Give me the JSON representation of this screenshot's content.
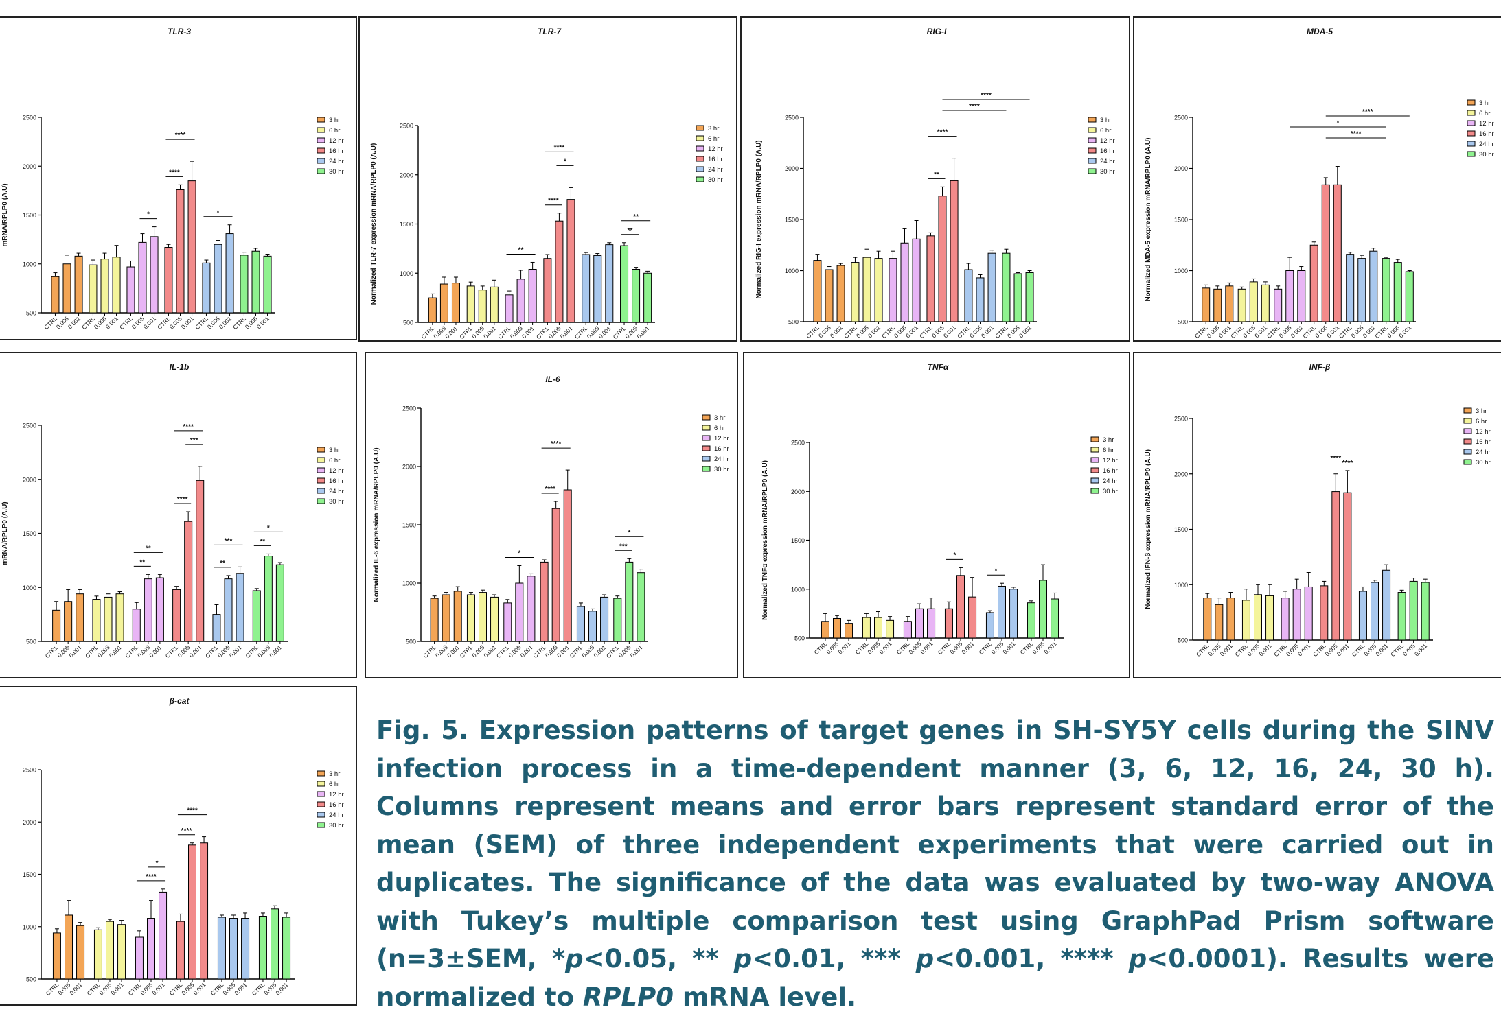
{
  "x_tick_labels": [
    "CTRL",
    "0.005",
    "0.001"
  ],
  "legend_labels": [
    "3 hr",
    "6 hr",
    "12 hr",
    "16 hr",
    "24 hr",
    "30 hr"
  ],
  "group_colors": [
    "#f3a556",
    "#f4f49b",
    "#e8b5f5",
    "#f28a8a",
    "#a9c8ee",
    "#8ff28f"
  ],
  "chart_data": [
    {
      "type": "bar",
      "title": "TLR-3",
      "ylabel": "mRNA/RPLP0 (A.U)",
      "ylim": [
        500,
        2500
      ],
      "yticks": [
        500,
        1000,
        1500,
        2000,
        2500
      ],
      "groups": [
        "3 hr",
        "6 hr",
        "12 hr",
        "16 hr",
        "24 hr",
        "30 hr"
      ],
      "categories": [
        "CTRL",
        "0.005",
        "0.001"
      ],
      "values": [
        [
          870,
          1000,
          1080
        ],
        [
          990,
          1050,
          1070
        ],
        [
          970,
          1220,
          1280
        ],
        [
          1170,
          1760,
          1850
        ],
        [
          1010,
          1200,
          1310
        ],
        [
          1090,
          1130,
          1080
        ]
      ],
      "errors": [
        [
          40,
          90,
          30
        ],
        [
          50,
          60,
          120
        ],
        [
          60,
          90,
          100
        ],
        [
          30,
          50,
          200
        ],
        [
          30,
          40,
          90
        ],
        [
          30,
          30,
          20
        ]
      ],
      "annotations": [
        {
          "group": 2,
          "from": 1,
          "to": 2,
          "text": "*"
        },
        {
          "group": 3,
          "from": 0,
          "to": 1,
          "text": "****"
        },
        {
          "group": 3,
          "from": 0,
          "to": 2,
          "text": "****"
        },
        {
          "group": 4,
          "from": 0,
          "to": 2,
          "text": "*"
        }
      ]
    },
    {
      "type": "bar",
      "title": "TLR-7",
      "ylabel": "Normalized TLR-7 expression mRNA/RPLP0 (A.U)",
      "ylim": [
        500,
        2500
      ],
      "yticks": [
        500,
        1000,
        1500,
        2000,
        2500
      ],
      "groups": [
        "3 hr",
        "6 hr",
        "12 hr",
        "16 hr",
        "24 hr",
        "30 hr"
      ],
      "categories": [
        "CTRL",
        "0.005",
        "0.001"
      ],
      "values": [
        [
          750,
          890,
          900
        ],
        [
          870,
          830,
          860
        ],
        [
          780,
          940,
          1040
        ],
        [
          1150,
          1530,
          1750
        ],
        [
          1190,
          1180,
          1290
        ],
        [
          1280,
          1040,
          1000
        ]
      ],
      "errors": [
        [
          40,
          70,
          60
        ],
        [
          40,
          40,
          70
        ],
        [
          40,
          90,
          70
        ],
        [
          40,
          80,
          120
        ],
        [
          20,
          20,
          20
        ],
        [
          30,
          20,
          20
        ]
      ],
      "annotations": [
        {
          "group": 2,
          "from": 0,
          "to": 2,
          "text": "**"
        },
        {
          "group": 3,
          "from": 0,
          "to": 1,
          "text": "****"
        },
        {
          "group": 3,
          "from": 1,
          "to": 2,
          "text": "*"
        },
        {
          "group": 3,
          "from": 0,
          "to": 2,
          "text": "****"
        },
        {
          "group": 5,
          "from": 0,
          "to": 1,
          "text": "**"
        },
        {
          "group": 5,
          "from": 0,
          "to": 2,
          "text": "**"
        }
      ]
    },
    {
      "type": "bar",
      "title": "RIG-I",
      "ylabel": "Normalized RIG-I expression mRNA/RPLP0 (A.U)",
      "ylim": [
        500,
        2500
      ],
      "yticks": [
        500,
        1000,
        1500,
        2000,
        2500
      ],
      "groups": [
        "3 hr",
        "6 hr",
        "12 hr",
        "16 hr",
        "24 hr",
        "30 hr"
      ],
      "categories": [
        "CTRL",
        "0.005",
        "0.001"
      ],
      "values": [
        [
          1100,
          1010,
          1050
        ],
        [
          1080,
          1130,
          1120
        ],
        [
          1120,
          1270,
          1310
        ],
        [
          1340,
          1730,
          1880
        ],
        [
          1010,
          930,
          1170
        ],
        [
          1170,
          970,
          980
        ]
      ],
      "errors": [
        [
          60,
          30,
          20
        ],
        [
          50,
          80,
          70
        ],
        [
          70,
          140,
          180
        ],
        [
          30,
          90,
          220
        ],
        [
          60,
          30,
          30
        ],
        [
          40,
          10,
          20
        ]
      ],
      "annotations": [
        {
          "group": 3,
          "from": 0,
          "to": 1,
          "text": "**"
        },
        {
          "group": 3,
          "from": 0,
          "to": 2,
          "text": "****"
        }
      ],
      "spans": [
        {
          "fromGroup": 3,
          "toGroup": 5,
          "text": "****",
          "level": 1
        },
        {
          "fromGroup": 3,
          "toGroup": 6,
          "text": "****",
          "level": 2
        }
      ]
    },
    {
      "type": "bar",
      "title": "MDA-5",
      "ylabel": "Normalized MDA-5 expression mRNA/RPLP0 (A.U)",
      "ylim": [
        500,
        2500
      ],
      "yticks": [
        500,
        1000,
        1500,
        2000,
        2500
      ],
      "groups": [
        "3 hr",
        "6 hr",
        "12 hr",
        "16 hr",
        "24 hr",
        "30 hr"
      ],
      "categories": [
        "CTRL",
        "0.005",
        "0.001"
      ],
      "values": [
        [
          830,
          820,
          850
        ],
        [
          820,
          890,
          860
        ],
        [
          820,
          1000,
          1000
        ],
        [
          1250,
          1840,
          1840
        ],
        [
          1160,
          1120,
          1190
        ],
        [
          1120,
          1080,
          990
        ]
      ],
      "errors": [
        [
          30,
          30,
          30
        ],
        [
          20,
          30,
          30
        ],
        [
          30,
          130,
          40
        ],
        [
          30,
          70,
          180
        ],
        [
          20,
          30,
          30
        ],
        [
          10,
          30,
          10
        ]
      ],
      "annotations": [],
      "spans": [
        {
          "fromGroup": 3,
          "toGroup": 5,
          "text": "****",
          "level": 1
        },
        {
          "fromGroup": 2,
          "toGroup": 5,
          "text": "*",
          "level": 2
        },
        {
          "fromGroup": 3,
          "toGroup": 6,
          "text": "****",
          "level": 3
        }
      ]
    },
    {
      "type": "bar",
      "title": "IL-1b",
      "ylabel": "mRNA/RPLP0 (A.U)",
      "ylim": [
        500,
        2500
      ],
      "yticks": [
        500,
        1000,
        1500,
        2000,
        2500
      ],
      "groups": [
        "3 hr",
        "6 hr",
        "12 hr",
        "16 hr",
        "24 hr",
        "30 hr"
      ],
      "categories": [
        "CTRL",
        "0.005",
        "0.001"
      ],
      "values": [
        [
          790,
          870,
          940
        ],
        [
          890,
          910,
          940
        ],
        [
          800,
          1080,
          1090
        ],
        [
          980,
          1610,
          1990
        ],
        [
          750,
          1080,
          1130
        ],
        [
          970,
          1290,
          1210
        ]
      ],
      "errors": [
        [
          80,
          110,
          40
        ],
        [
          30,
          30,
          20
        ],
        [
          60,
          40,
          30
        ],
        [
          30,
          90,
          130
        ],
        [
          90,
          30,
          60
        ],
        [
          20,
          20,
          20
        ]
      ],
      "annotations": [
        {
          "group": 2,
          "from": 0,
          "to": 1,
          "text": "**"
        },
        {
          "group": 2,
          "from": 0,
          "to": 2,
          "text": "**"
        },
        {
          "group": 3,
          "from": 0,
          "to": 1,
          "text": "****"
        },
        {
          "group": 3,
          "from": 1,
          "to": 2,
          "text": "***"
        },
        {
          "group": 3,
          "from": 0,
          "to": 2,
          "text": "****"
        },
        {
          "group": 4,
          "from": 0,
          "to": 1,
          "text": "**"
        },
        {
          "group": 4,
          "from": 0,
          "to": 2,
          "text": "***"
        },
        {
          "group": 5,
          "from": 0,
          "to": 1,
          "text": "**"
        },
        {
          "group": 5,
          "from": 0,
          "to": 2,
          "text": "*"
        }
      ]
    },
    {
      "type": "bar",
      "title": "IL-6",
      "ylabel": "Normalized IL-6 expression mRNA/RPLP0 (A.U)",
      "ylim": [
        500,
        2500
      ],
      "yticks": [
        500,
        1000,
        1500,
        2000,
        2500
      ],
      "groups": [
        "3 hr",
        "6 hr",
        "12 hr",
        "16 hr",
        "24 hr",
        "30 hr"
      ],
      "categories": [
        "CTRL",
        "0.005",
        "0.001"
      ],
      "values": [
        [
          870,
          900,
          930
        ],
        [
          900,
          920,
          880
        ],
        [
          830,
          1000,
          1060
        ],
        [
          1180,
          1640,
          1800
        ],
        [
          800,
          760,
          880
        ],
        [
          870,
          1180,
          1090
        ]
      ],
      "errors": [
        [
          20,
          20,
          40
        ],
        [
          20,
          20,
          20
        ],
        [
          30,
          150,
          20
        ],
        [
          20,
          60,
          170
        ],
        [
          30,
          20,
          20
        ],
        [
          20,
          30,
          30
        ]
      ],
      "annotations": [
        {
          "group": 2,
          "from": 0,
          "to": 2,
          "text": "*"
        },
        {
          "group": 3,
          "from": 0,
          "to": 1,
          "text": "****"
        },
        {
          "group": 3,
          "from": 0,
          "to": 2,
          "text": "****"
        },
        {
          "group": 5,
          "from": 0,
          "to": 1,
          "text": "***"
        },
        {
          "group": 5,
          "from": 0,
          "to": 2,
          "text": "*"
        }
      ]
    },
    {
      "type": "bar",
      "title": "TNFα",
      "ylabel": "Normalized TNFα expression mRNA/RPLP0 (A.U)",
      "ylim": [
        500,
        2500
      ],
      "yticks": [
        500,
        1000,
        1500,
        2000,
        2500
      ],
      "groups": [
        "3 hr",
        "6 hr",
        "12 hr",
        "16 hr",
        "24 hr",
        "30 hr"
      ],
      "categories": [
        "CTRL",
        "0.005",
        "0.001"
      ],
      "values": [
        [
          670,
          700,
          650
        ],
        [
          710,
          710,
          680
        ],
        [
          670,
          800,
          800
        ],
        [
          800,
          1140,
          920
        ],
        [
          760,
          1030,
          1000
        ],
        [
          860,
          1090,
          900
        ]
      ],
      "errors": [
        [
          80,
          30,
          30
        ],
        [
          40,
          60,
          40
        ],
        [
          50,
          50,
          110
        ],
        [
          70,
          80,
          200
        ],
        [
          20,
          30,
          20
        ],
        [
          20,
          160,
          60
        ]
      ],
      "annotations": [
        {
          "group": 3,
          "from": 0,
          "to": 1,
          "text": "*"
        },
        {
          "group": 4,
          "from": 0,
          "to": 1,
          "text": "*"
        }
      ]
    },
    {
      "type": "bar",
      "title": "INF-β",
      "ylabel": "Normalized IFN-β expression mRNA/RPLP0 (A.U)",
      "ylim": [
        500,
        2500
      ],
      "yticks": [
        500,
        1000,
        1500,
        2000,
        2500
      ],
      "groups": [
        "3 hr",
        "6 hr",
        "12 hr",
        "16 hr",
        "24 hr",
        "30 hr"
      ],
      "categories": [
        "CTRL",
        "0.005",
        "0.001"
      ],
      "values": [
        [
          880,
          820,
          880
        ],
        [
          860,
          910,
          900
        ],
        [
          880,
          960,
          980
        ],
        [
          990,
          1840,
          1830
        ],
        [
          940,
          1020,
          1130
        ],
        [
          930,
          1030,
          1020
        ]
      ],
      "errors": [
        [
          40,
          60,
          50
        ],
        [
          100,
          90,
          100
        ],
        [
          60,
          90,
          130
        ],
        [
          40,
          160,
          200
        ],
        [
          40,
          20,
          50
        ],
        [
          20,
          30,
          30
        ]
      ],
      "annotations": [],
      "labels": [
        {
          "group": 3,
          "bar": 1,
          "text": "****"
        },
        {
          "group": 3,
          "bar": 2,
          "text": "****"
        }
      ]
    },
    {
      "type": "bar",
      "title": "β-cat",
      "ylabel": "",
      "ylim": [
        500,
        2500
      ],
      "yticks": [
        500,
        1000,
        1500,
        2000,
        2500
      ],
      "groups": [
        "3 hr",
        "6 hr",
        "12 hr",
        "16 hr",
        "24 hr",
        "30 hr"
      ],
      "categories": [
        "CTRL",
        "0.005",
        "0.001"
      ],
      "values": [
        [
          940,
          1110,
          1010
        ],
        [
          970,
          1050,
          1020
        ],
        [
          900,
          1080,
          1330
        ],
        [
          1050,
          1780,
          1800
        ],
        [
          1090,
          1080,
          1080
        ],
        [
          1100,
          1170,
          1090
        ]
      ],
      "errors": [
        [
          40,
          140,
          30
        ],
        [
          20,
          20,
          40
        ],
        [
          60,
          170,
          30
        ],
        [
          70,
          20,
          60
        ],
        [
          20,
          30,
          50
        ],
        [
          30,
          30,
          40
        ]
      ],
      "annotations": [
        {
          "group": 2,
          "from": 0,
          "to": 2,
          "text": "****"
        },
        {
          "group": 2,
          "from": 1,
          "to": 2,
          "text": "*"
        },
        {
          "group": 3,
          "from": 0,
          "to": 1,
          "text": "****"
        },
        {
          "group": 3,
          "from": 0,
          "to": 2,
          "text": "****"
        }
      ]
    }
  ],
  "caption": {
    "part1": "Fig. 5. Expression patterns of target genes in SH-SY5Y cells during the SINV infection process in a time-dependent manner (3, 6, 12, 16, 24, 30 h). Columns represent means and error bars represent standard error of the mean (SEM) of three independent experiments that were carried out in duplicates. The significance of the data was evaluated by two-way ANOVA with Tukey’s multiple comparison test using GraphPad Prism software (n=3±SEM, *",
    "p1": "p",
    "part2": "<0.05, ** ",
    "p2": "p",
    "part3": "<0.01, *** ",
    "p3": "p",
    "part4": "<0.001, **** ",
    "p4": "p",
    "part5": "<0.0001). Results were normalized to ",
    "gene": "RPLP0",
    "part6": " mRNA level."
  }
}
